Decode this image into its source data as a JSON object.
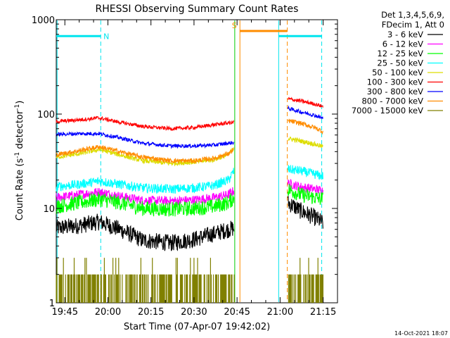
{
  "chart_data": {
    "type": "line",
    "title": "RHESSI Observing Summary Count Rates",
    "xlabel": "Start Time (07-Apr-07 19:42:02)",
    "ylabel_main": "Count Rate (s",
    "ylabel_sup1": "-1",
    "ylabel_mid": " detector",
    "ylabel_sup2": "-1",
    "ylabel_end": ")",
    "x_unit": "minutes after 19:42:02",
    "xlim": [
      0,
      98
    ],
    "ylim": [
      1,
      1000
    ],
    "y_scale": "log",
    "x_ticks": [
      {
        "label": "19:45",
        "value": 3
      },
      {
        "label": "20:00",
        "value": 18
      },
      {
        "label": "20:15",
        "value": 33
      },
      {
        "label": "20:30",
        "value": 48
      },
      {
        "label": "20:45",
        "value": 63
      },
      {
        "label": "21:00",
        "value": 78
      },
      {
        "label": "21:15",
        "value": 93
      }
    ],
    "y_ticks": [
      {
        "label": "1000",
        "value": 1000
      },
      {
        "label": "100",
        "value": 100
      },
      {
        "label": "10",
        "value": 10
      },
      {
        "label": "1",
        "value": 1
      }
    ],
    "legend_header": [
      "Det 1,3,4,5,6,9,",
      "FDecim 1, Att 0"
    ],
    "legend_placement": "outside-right",
    "timestamp": "14-Oct-2021 18:07",
    "flags": [
      {
        "label": "N",
        "color": "#00e5ee",
        "segments": [
          [
            0,
            15.5
          ],
          [
            77.5,
            92.5
          ]
        ],
        "y": 670
      },
      {
        "label": "S",
        "color": "#ff8c00",
        "segments": [
          [
            64,
            80.5
          ]
        ],
        "y": 760
      }
    ],
    "markers": [
      {
        "t": 0.3,
        "color": "#00e5ee",
        "style": "solid"
      },
      {
        "t": 15.5,
        "color": "#00e5ee",
        "style": "dashed"
      },
      {
        "t": 62.2,
        "color": "#00cc00",
        "style": "solid"
      },
      {
        "t": 64,
        "color": "#ff8c00",
        "style": "solid"
      },
      {
        "t": 77.5,
        "color": "#00e5ee",
        "style": "solid"
      },
      {
        "t": 80.5,
        "color": "#ff8c00",
        "style": "dashed"
      },
      {
        "t": 92.5,
        "color": "#00e5ee",
        "style": "dashed"
      }
    ],
    "series": [
      {
        "name": "3 - 6 keV",
        "color": "#000000",
        "noise": 0.09,
        "seg1": [
          [
            0,
            6.2
          ],
          [
            8,
            6.6
          ],
          [
            15,
            7.2
          ],
          [
            22,
            6.0
          ],
          [
            30,
            4.6
          ],
          [
            40,
            4.3
          ],
          [
            48,
            4.7
          ],
          [
            55,
            5.4
          ],
          [
            62,
            6.2
          ]
        ],
        "seg2": [
          [
            80.7,
            11.5
          ],
          [
            85,
            9.5
          ],
          [
            90,
            8.0
          ],
          [
            93,
            7.0
          ]
        ]
      },
      {
        "name": "6 - 12 keV",
        "color": "#ff00ff",
        "noise": 0.05,
        "seg1": [
          [
            0,
            13
          ],
          [
            8,
            14
          ],
          [
            15,
            15
          ],
          [
            22,
            13.5
          ],
          [
            30,
            12.2
          ],
          [
            40,
            12
          ],
          [
            48,
            12.3
          ],
          [
            55,
            13
          ],
          [
            60,
            14
          ],
          [
            62,
            15.5
          ]
        ],
        "seg2": [
          [
            80.7,
            18.5
          ],
          [
            85,
            17
          ],
          [
            90,
            16
          ],
          [
            93,
            15.5
          ]
        ]
      },
      {
        "name": "12 - 25 keV",
        "color": "#00ff00",
        "noise": 0.08,
        "seg1": [
          [
            0,
            10.5
          ],
          [
            8,
            11.5
          ],
          [
            15,
            12.5
          ],
          [
            22,
            11.5
          ],
          [
            30,
            10
          ],
          [
            40,
            9.8
          ],
          [
            48,
            10
          ],
          [
            55,
            10.5
          ],
          [
            60,
            11.5
          ],
          [
            62,
            13
          ]
        ],
        "seg2": [
          [
            80.7,
            16
          ],
          [
            85,
            14
          ],
          [
            90,
            13
          ],
          [
            93,
            12.5
          ]
        ]
      },
      {
        "name": "25 - 50 keV",
        "color": "#00ffff",
        "noise": 0.05,
        "seg1": [
          [
            0,
            17
          ],
          [
            8,
            18
          ],
          [
            15,
            19.5
          ],
          [
            22,
            18
          ],
          [
            30,
            16.5
          ],
          [
            40,
            16
          ],
          [
            48,
            16.5
          ],
          [
            55,
            17.5
          ],
          [
            60,
            20
          ],
          [
            62,
            25
          ]
        ],
        "seg2": [
          [
            80.7,
            26
          ],
          [
            85,
            25
          ],
          [
            90,
            23
          ],
          [
            93,
            22
          ]
        ]
      },
      {
        "name": "50 - 100 keV",
        "color": "#dddd00",
        "noise": 0.025,
        "seg1": [
          [
            0,
            35
          ],
          [
            8,
            38
          ],
          [
            15,
            42
          ],
          [
            22,
            37
          ],
          [
            30,
            32
          ],
          [
            40,
            30
          ],
          [
            48,
            31
          ],
          [
            55,
            33
          ],
          [
            60,
            37
          ],
          [
            62,
            44
          ]
        ],
        "seg2": [
          [
            80.7,
            55
          ],
          [
            85,
            52
          ],
          [
            90,
            48
          ],
          [
            93,
            45
          ]
        ]
      },
      {
        "name": "100 - 300 keV",
        "color": "#ff0000",
        "noise": 0.02,
        "seg1": [
          [
            0,
            83
          ],
          [
            8,
            87
          ],
          [
            15,
            91
          ],
          [
            22,
            82
          ],
          [
            30,
            74
          ],
          [
            40,
            70
          ],
          [
            48,
            72
          ],
          [
            55,
            77
          ],
          [
            62,
            82
          ]
        ],
        "seg2": [
          [
            80.7,
            145
          ],
          [
            85,
            138
          ],
          [
            90,
            128
          ],
          [
            93,
            120
          ]
        ]
      },
      {
        "name": "300 - 800 keV",
        "color": "#0000ff",
        "noise": 0.02,
        "seg1": [
          [
            0,
            61
          ],
          [
            8,
            62
          ],
          [
            15,
            62
          ],
          [
            22,
            56
          ],
          [
            30,
            49
          ],
          [
            40,
            46
          ],
          [
            48,
            46
          ],
          [
            55,
            47
          ],
          [
            62,
            50
          ]
        ],
        "seg2": [
          [
            80.7,
            115
          ],
          [
            85,
            106
          ],
          [
            90,
            97
          ],
          [
            93,
            90
          ]
        ]
      },
      {
        "name": "800 - 7000 keV",
        "color": "#ff8c00",
        "noise": 0.025,
        "seg1": [
          [
            0,
            37
          ],
          [
            8,
            41
          ],
          [
            15,
            45
          ],
          [
            22,
            40
          ],
          [
            30,
            35
          ],
          [
            40,
            32
          ],
          [
            48,
            32
          ],
          [
            55,
            34
          ],
          [
            60,
            38
          ],
          [
            62,
            42
          ]
        ],
        "seg2": [
          [
            80.7,
            85
          ],
          [
            85,
            80
          ],
          [
            90,
            72
          ],
          [
            93,
            65
          ]
        ]
      },
      {
        "name": "7000 - 15000 keV",
        "color": "#808000",
        "noise": 0,
        "seg1": [
          [
            0,
            1
          ],
          [
            62,
            1
          ]
        ],
        "seg2": [
          [
            80.7,
            1
          ],
          [
            93,
            1
          ]
        ]
      }
    ]
  }
}
